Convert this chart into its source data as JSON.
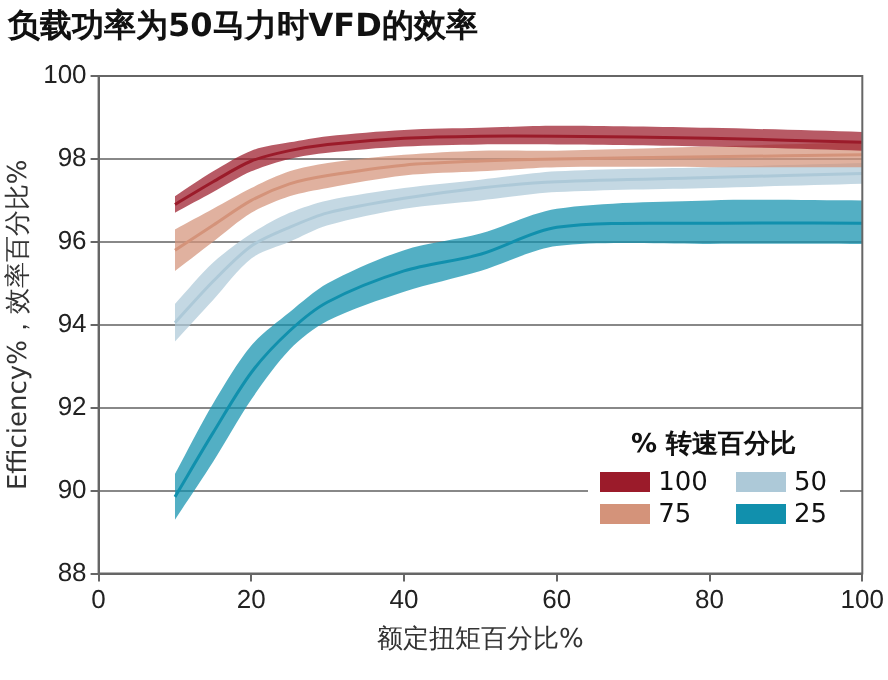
{
  "chart_data": {
    "type": "line",
    "title": "负载功率为50马力时VFD的效率",
    "xlabel": "额定扭矩百分比%",
    "ylabel": "Efficiency%，效率百分比%",
    "legend_title": "% 转速百分比",
    "legend": "bottom right",
    "grid": "y",
    "marker": "none",
    "xlim": [
      0,
      100
    ],
    "xticks": [
      0,
      20,
      40,
      60,
      80,
      100
    ],
    "ylim": [
      88,
      100
    ],
    "yticks": [
      88,
      90,
      92,
      94,
      96,
      98,
      100
    ],
    "x": [
      10,
      15,
      20,
      25,
      30,
      40,
      50,
      60,
      80,
      100
    ],
    "series": [
      {
        "name": "100",
        "color": "#9b1b2a",
        "values": [
          96.9,
          97.45,
          97.95,
          98.2,
          98.35,
          98.5,
          98.55,
          98.55,
          98.5,
          98.4
        ],
        "lower": [
          96.7,
          97.2,
          97.7,
          98.0,
          98.15,
          98.3,
          98.35,
          98.35,
          98.3,
          98.2
        ],
        "upper": [
          97.1,
          97.7,
          98.2,
          98.4,
          98.55,
          98.7,
          98.75,
          98.8,
          98.75,
          98.65
        ]
      },
      {
        "name": "75",
        "color": "#d4937a",
        "values": [
          95.8,
          96.4,
          97.0,
          97.4,
          97.6,
          97.85,
          97.95,
          98.0,
          98.05,
          98.1
        ],
        "lower": [
          95.3,
          96.0,
          96.7,
          97.1,
          97.3,
          97.6,
          97.7,
          97.8,
          97.8,
          97.8
        ],
        "upper": [
          96.3,
          96.8,
          97.3,
          97.7,
          97.9,
          98.1,
          98.2,
          98.2,
          98.3,
          98.4
        ]
      },
      {
        "name": "50",
        "color": "#adc9d8",
        "values": [
          94.05,
          95.05,
          95.9,
          96.35,
          96.7,
          97.05,
          97.3,
          97.45,
          97.55,
          97.65
        ],
        "lower": [
          93.6,
          94.6,
          95.6,
          96.0,
          96.4,
          96.8,
          97.0,
          97.2,
          97.3,
          97.4
        ],
        "upper": [
          94.5,
          95.5,
          96.2,
          96.7,
          97.0,
          97.3,
          97.5,
          97.7,
          97.8,
          97.9
        ]
      },
      {
        "name": "25",
        "color": "#1190ad",
        "values": [
          89.85,
          91.4,
          92.85,
          93.85,
          94.55,
          95.3,
          95.7,
          96.35,
          96.45,
          96.45
        ],
        "lower": [
          89.3,
          90.7,
          92.2,
          93.4,
          94.1,
          94.8,
          95.3,
          95.9,
          95.95,
          95.95
        ],
        "upper": [
          90.4,
          92.1,
          93.5,
          94.3,
          95.0,
          95.8,
          96.2,
          96.8,
          97.0,
          97.0
        ]
      }
    ]
  }
}
